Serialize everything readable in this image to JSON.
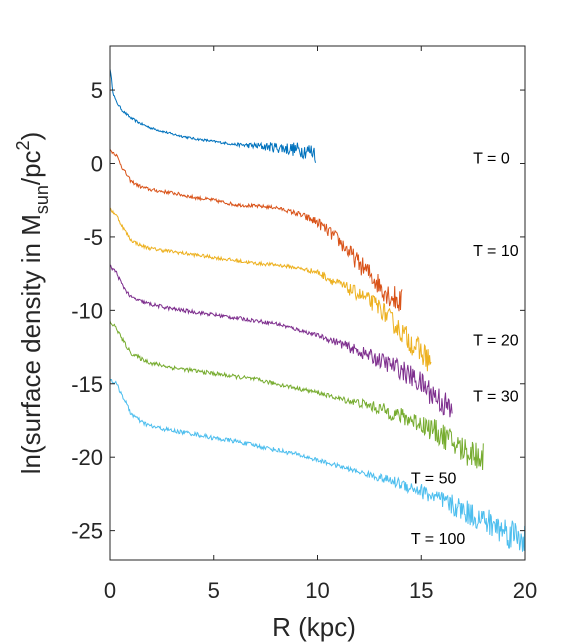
{
  "chart_data": {
    "type": "line",
    "xlabel": "R (kpc)",
    "ylabel": {
      "prefix": "ln(surface density in M",
      "sub": "sun",
      "mid": "/pc",
      "sup": "2",
      "suffix": ")"
    },
    "xlim": [
      0,
      20
    ],
    "ylim": [
      -27,
      8
    ],
    "xticks": [
      "0",
      "5",
      "10",
      "15",
      "20"
    ],
    "yticks": [
      "5",
      "0",
      "-5",
      "-10",
      "-15",
      "-20",
      "-25"
    ],
    "xtick_values": [
      0,
      5,
      10,
      15,
      20
    ],
    "ytick_values": [
      5,
      0,
      -5,
      -10,
      -15,
      -20,
      -25
    ],
    "grid": false,
    "series": [
      {
        "label": "T = 0",
        "color": "#0072BD",
        "noise": 0.08,
        "x": [
          0,
          0.15,
          0.3,
          0.6,
          1,
          1.5,
          2,
          3,
          4,
          5,
          6,
          7,
          8,
          9,
          9.6,
          9.9,
          9.92
        ],
        "y": [
          6.5,
          4.8,
          4.2,
          3.6,
          3.1,
          2.7,
          2.4,
          2.0,
          1.7,
          1.5,
          1.3,
          1.2,
          1.1,
          0.95,
          0.85,
          0.8,
          0.1
        ]
      },
      {
        "label": "T = 10",
        "color": "#D95319",
        "noise": 0.12,
        "x": [
          0,
          0.3,
          0.6,
          1,
          1.5,
          2,
          3,
          4,
          5,
          6,
          7,
          8,
          9,
          10,
          11,
          12,
          12.5,
          13,
          13.5,
          14,
          14.1
        ],
        "y": [
          0.9,
          0.6,
          -0.3,
          -1.2,
          -1.6,
          -1.8,
          -2.0,
          -2.3,
          -2.5,
          -2.8,
          -2.9,
          -3.0,
          -3.4,
          -4.0,
          -5.2,
          -6.8,
          -7.5,
          -8.3,
          -9.0,
          -9.4,
          -9.5
        ]
      },
      {
        "label": "T = 20",
        "color": "#EDB120",
        "noise": 0.12,
        "x": [
          0,
          0.3,
          0.6,
          1,
          1.5,
          2,
          3,
          4,
          5,
          6,
          7,
          8,
          9,
          10,
          11,
          12,
          13,
          14,
          15,
          15.5
        ],
        "y": [
          -3.1,
          -3.5,
          -4.3,
          -5.2,
          -5.6,
          -5.8,
          -6.0,
          -6.2,
          -6.4,
          -6.6,
          -6.8,
          -6.9,
          -7.1,
          -7.4,
          -8.2,
          -8.9,
          -9.8,
          -11.4,
          -12.9,
          -13.5
        ]
      },
      {
        "label": "T = 30",
        "color": "#7E2F8E",
        "noise": 0.13,
        "x": [
          0,
          0.3,
          0.6,
          1,
          1.5,
          2,
          3,
          4,
          5,
          6,
          7,
          8,
          9,
          10,
          11,
          12,
          13,
          14,
          15,
          16,
          16.5
        ],
        "y": [
          -7.0,
          -7.4,
          -8.3,
          -9.1,
          -9.4,
          -9.6,
          -9.9,
          -10.1,
          -10.3,
          -10.5,
          -10.7,
          -10.9,
          -11.3,
          -11.7,
          -12.2,
          -12.8,
          -13.4,
          -14.0,
          -15.0,
          -16.2,
          -17.0
        ]
      },
      {
        "label": "T = 50",
        "color": "#77AC30",
        "noise": 0.14,
        "x": [
          0,
          0.3,
          0.6,
          1,
          1.5,
          2,
          3,
          4,
          5,
          6,
          7,
          8,
          9,
          10,
          11,
          12,
          13,
          14,
          15,
          16,
          17,
          18
        ],
        "y": [
          -10.8,
          -11.2,
          -12.0,
          -12.9,
          -13.3,
          -13.6,
          -13.9,
          -14.1,
          -14.3,
          -14.5,
          -14.7,
          -15.0,
          -15.3,
          -15.6,
          -16.0,
          -16.3,
          -16.7,
          -17.2,
          -17.7,
          -18.5,
          -19.5,
          -20.0
        ]
      },
      {
        "label": "T = 100",
        "color": "#4DBEEE",
        "noise": 0.15,
        "x": [
          0,
          0.3,
          0.6,
          1,
          1.5,
          2,
          3,
          4,
          5,
          6,
          7,
          8,
          9,
          10,
          11,
          12,
          13,
          14,
          15,
          16,
          17,
          18,
          19,
          20
        ],
        "y": [
          -14.7,
          -15.0,
          -15.8,
          -17.0,
          -17.6,
          -17.9,
          -18.2,
          -18.4,
          -18.7,
          -18.9,
          -19.2,
          -19.5,
          -19.8,
          -20.2,
          -20.6,
          -21.0,
          -21.4,
          -21.8,
          -22.3,
          -23.0,
          -23.6,
          -24.3,
          -25.0,
          -25.5
        ]
      }
    ],
    "annotations": [
      {
        "text": "T = 0",
        "x": 17.5,
        "y": 0
      },
      {
        "text": "T = 10",
        "x": 17.5,
        "y": -6.3
      },
      {
        "text": "T = 20",
        "x": 17.5,
        "y": -12.4
      },
      {
        "text": "T = 30",
        "x": 17.5,
        "y": -16.2
      },
      {
        "text": "T = 50",
        "x": 14.5,
        "y": -21.8
      },
      {
        "text": "T = 100",
        "x": 14.5,
        "y": -25.9
      }
    ]
  }
}
